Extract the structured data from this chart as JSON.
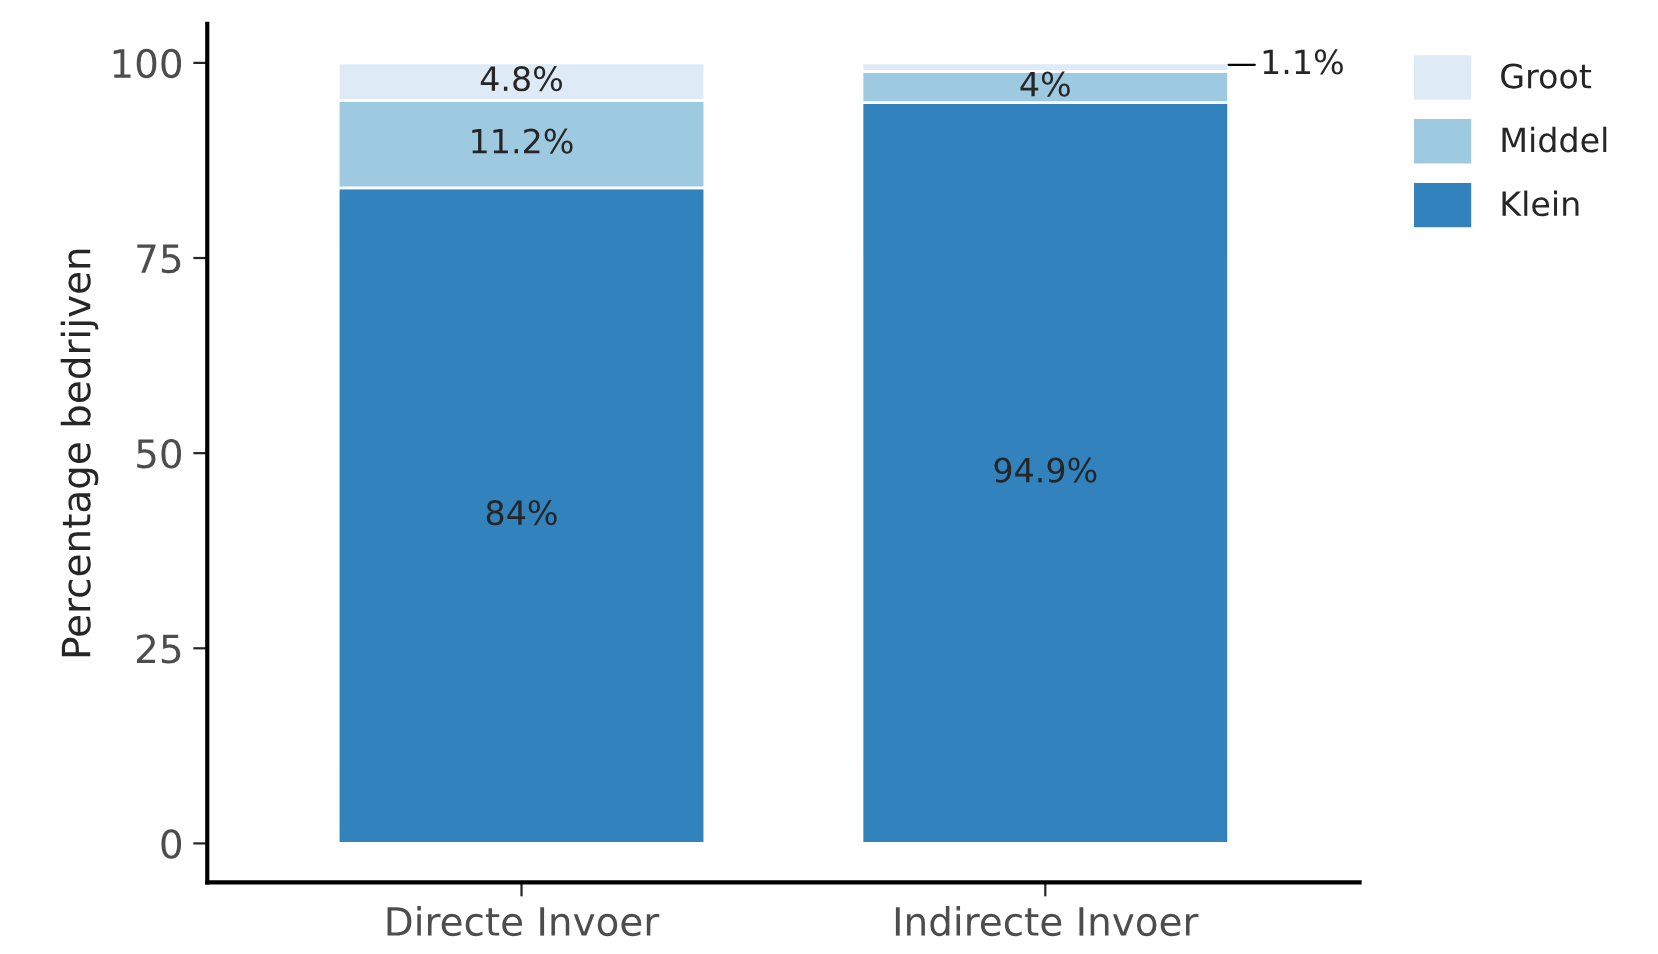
{
  "chart_data": {
    "type": "bar",
    "stacked": true,
    "ylabel": "Percentage bedrijven",
    "categories": [
      "Directe Invoer",
      "Indirecte Invoer"
    ],
    "series": [
      {
        "name": "Klein",
        "color": "#3182bd",
        "values": [
          84,
          94.9
        ],
        "value_labels": [
          "84%",
          "94.9%"
        ]
      },
      {
        "name": "Middel",
        "color": "#9ecae1",
        "values": [
          11.2,
          4
        ],
        "value_labels": [
          "11.2%",
          "4%"
        ]
      },
      {
        "name": "Groot",
        "color": "#deebf7",
        "values": [
          4.8,
          1.1
        ],
        "value_labels": [
          "4.8%",
          "1.1%"
        ]
      }
    ],
    "ylim": [
      -5,
      105
    ],
    "yticks": [
      0,
      25,
      50,
      75,
      100
    ],
    "grid": false,
    "legend": "right"
  }
}
